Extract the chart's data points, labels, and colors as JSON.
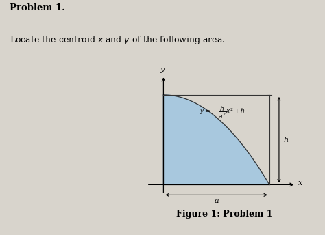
{
  "title_bold": "Problem 1.",
  "subtitle": "Locate the centroid $\\bar{x}$ and $\\bar{y}$ of the following area.",
  "figure_caption": "Figure 1: Problem 1",
  "panel_bg_color": "#c8bfa8",
  "curve_fill_color": "#a8c8de",
  "equation_text": "$y=-\\dfrac{h}{a^2}x^2+h$",
  "label_h": "h",
  "label_a": "a",
  "label_x": "x",
  "label_y": "y",
  "page_bg": "#d8d4cc"
}
